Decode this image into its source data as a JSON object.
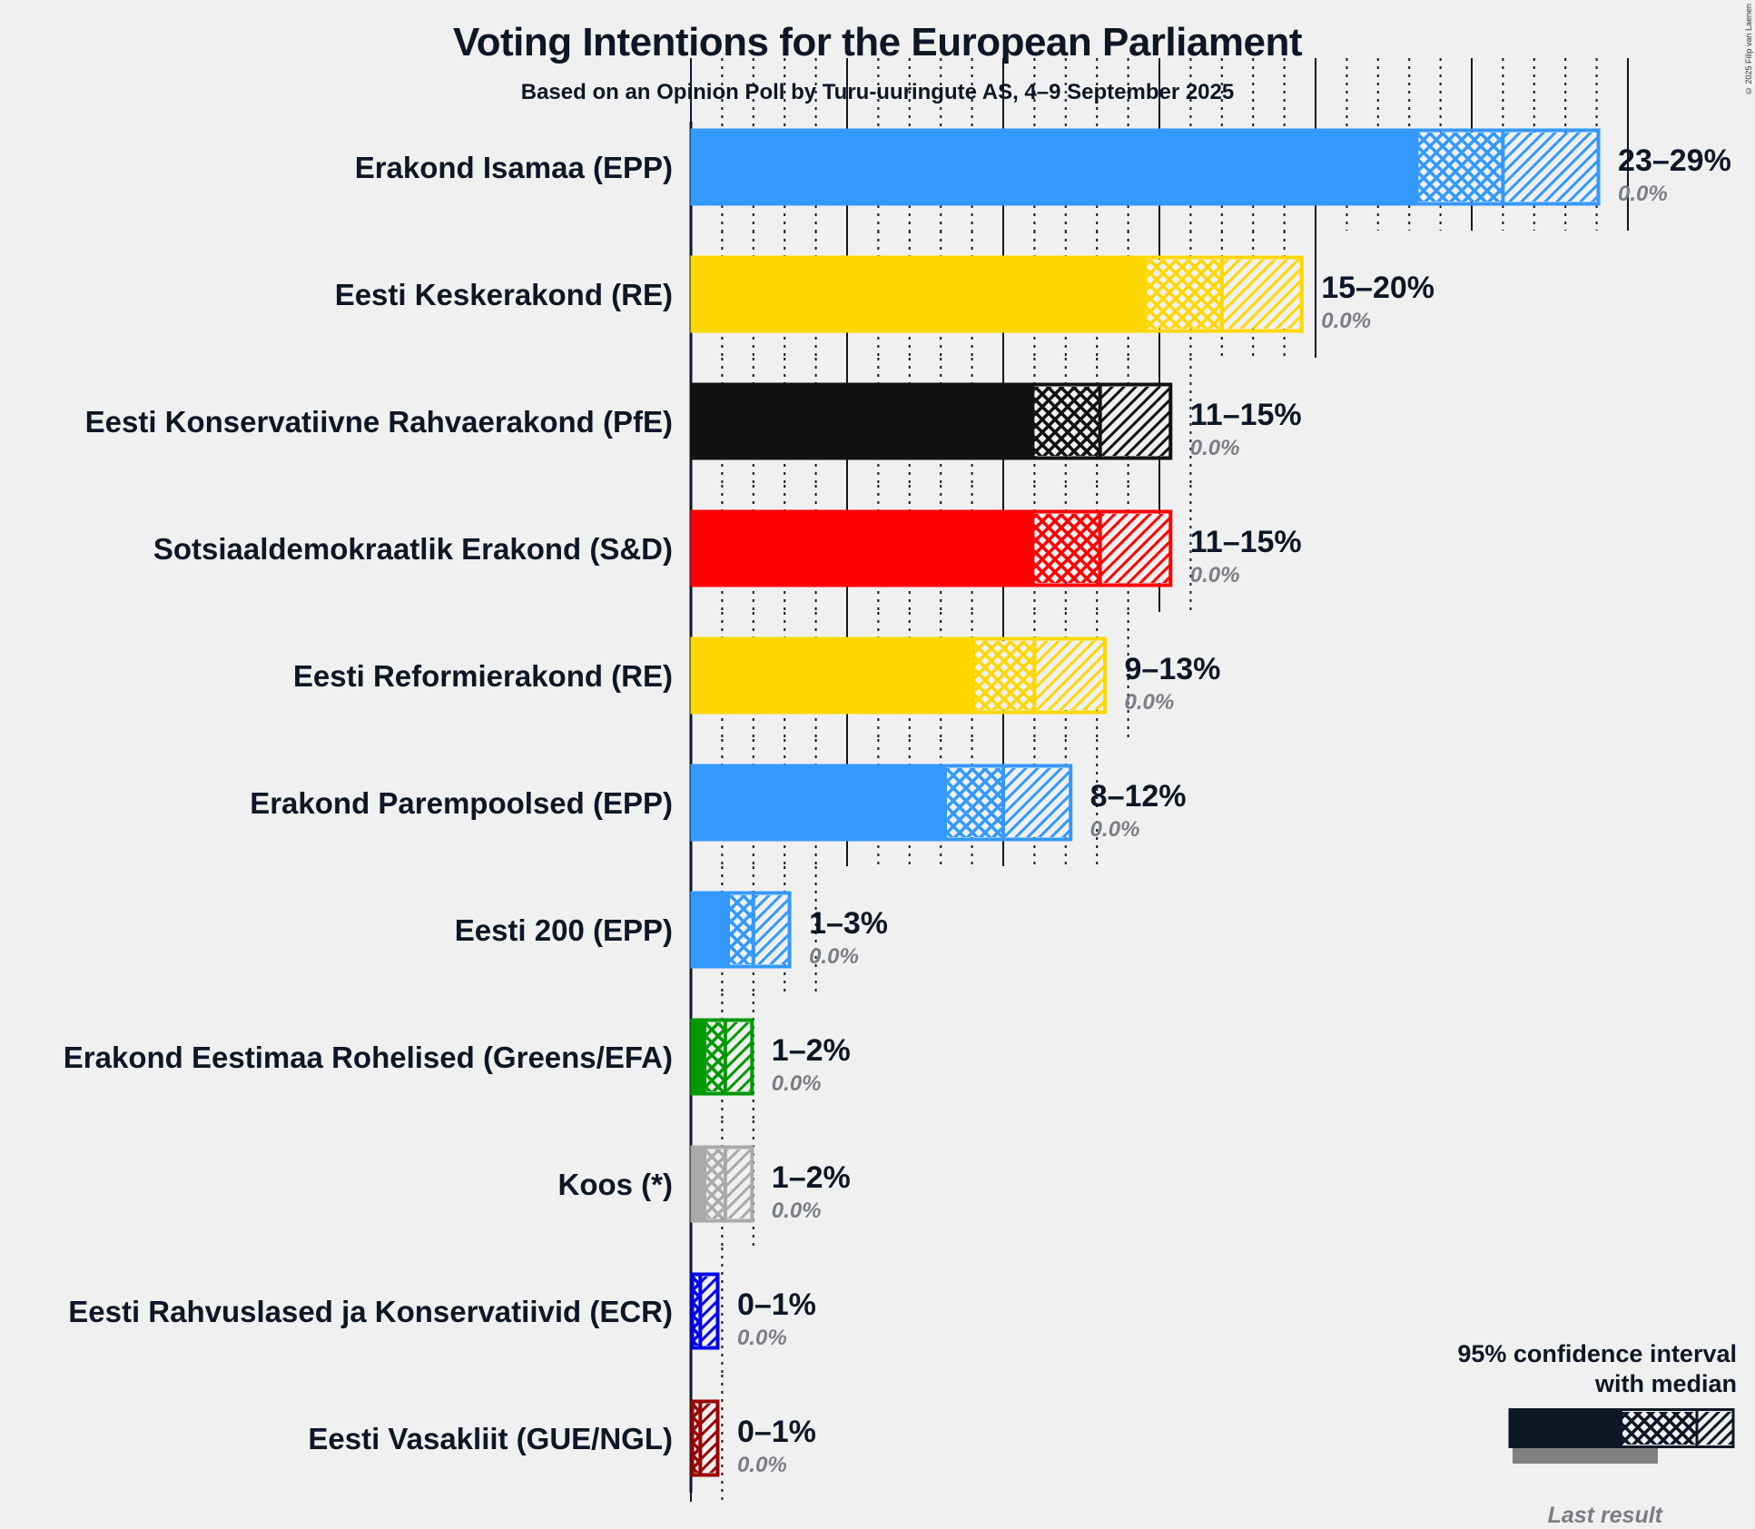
{
  "title": "Voting Intentions for the European Parliament",
  "subtitle": "Based on an Opinion Poll by Turu-uuringute AS, 4–9 September 2025",
  "copyright": "© 2025 Filip van Laenen",
  "legend": {
    "title_line1": "95% confidence interval",
    "title_line2": "with median",
    "last_result": "Last result"
  },
  "chart_data": {
    "type": "bar",
    "orientation": "horizontal",
    "title": "Voting Intentions for the European Parliament",
    "subtitle": "Based on an Opinion Poll by Turu-uuringute AS, 4–9 September 2025",
    "xlabel": "",
    "ylabel": "",
    "xlim": [
      0,
      30
    ],
    "x_major_tick_step": 5,
    "x_minor_tick_step": 1,
    "grid": true,
    "legend_position": "bottom-right",
    "series_fields": [
      "ci_low",
      "median",
      "ci_high",
      "last_result"
    ],
    "categories": [
      "Erakond Isamaa (EPP)",
      "Eesti Keskerakond (RE)",
      "Eesti Konservatiivne Rahvaerakond (PfE)",
      "Sotsiaaldemokraatlik Erakond (S&D)",
      "Eesti Reformierakond (RE)",
      "Erakond Parempoolsed (EPP)",
      "Eesti 200 (EPP)",
      "Erakond Eestimaa Rohelised (Greens/EFA)",
      "Koos (*)",
      "Eesti Rahvuslased ja Konservatiivid (ECR)",
      "Eesti Vasakliit (GUE/NGL)"
    ],
    "parties": [
      {
        "name": "Erakond Isamaa (EPP)",
        "color": "#3399ff",
        "ci_low": 23.3,
        "median": 26.0,
        "ci_high": 29.1,
        "range_label": "23–29%",
        "last_result": 0.0,
        "last_label": "0.0%"
      },
      {
        "name": "Eesti Keskerakond (RE)",
        "color": "#ffd700",
        "ci_low": 14.6,
        "median": 17.0,
        "ci_high": 19.6,
        "range_label": "15–20%",
        "last_result": 0.0,
        "last_label": "0.0%"
      },
      {
        "name": "Eesti Konservatiivne Rahvaerakond (PfE)",
        "color": "#111111",
        "ci_low": 11.0,
        "median": 13.1,
        "ci_high": 15.4,
        "range_label": "11–15%",
        "last_result": 0.0,
        "last_label": "0.0%"
      },
      {
        "name": "Sotsiaaldemokraatlik Erakond (S&D)",
        "color": "#ff0000",
        "ci_low": 11.0,
        "median": 13.1,
        "ci_high": 15.4,
        "range_label": "11–15%",
        "last_result": 0.0,
        "last_label": "0.0%"
      },
      {
        "name": "Eesti Reformierakond (RE)",
        "color": "#ffd700",
        "ci_low": 9.1,
        "median": 11.0,
        "ci_high": 13.3,
        "range_label": "9–13%",
        "last_result": 0.0,
        "last_label": "0.0%"
      },
      {
        "name": "Erakond Parempoolsed (EPP)",
        "color": "#3399ff",
        "ci_low": 8.2,
        "median": 10.0,
        "ci_high": 12.2,
        "range_label": "8–12%",
        "last_result": 0.0,
        "last_label": "0.0%"
      },
      {
        "name": "Eesti 200 (EPP)",
        "color": "#3399ff",
        "ci_low": 1.25,
        "median": 2.0,
        "ci_high": 3.2,
        "range_label": "1–3%",
        "last_result": 0.0,
        "last_label": "0.0%"
      },
      {
        "name": "Erakond Eestimaa Rohelised (Greens/EFA)",
        "color": "#009900",
        "ci_low": 0.5,
        "median": 1.1,
        "ci_high": 2.0,
        "range_label": "1–2%",
        "last_result": 0.0,
        "last_label": "0.0%"
      },
      {
        "name": "Koos (*)",
        "color": "#aaaaaa",
        "ci_low": 0.5,
        "median": 1.1,
        "ci_high": 2.0,
        "range_label": "1–2%",
        "last_result": 0.0,
        "last_label": "0.0%"
      },
      {
        "name": "Eesti Rahvuslased ja Konservatiivid (ECR)",
        "color": "#0000ee",
        "ci_low": 0.0,
        "median": 0.3,
        "ci_high": 0.9,
        "range_label": "0–1%",
        "last_result": 0.0,
        "last_label": "0.0%"
      },
      {
        "name": "Eesti Vasakliit (GUE/NGL)",
        "color": "#990000",
        "ci_low": 0.0,
        "median": 0.3,
        "ci_high": 0.9,
        "range_label": "0–1%",
        "last_result": 0.0,
        "last_label": "0.0%"
      }
    ]
  }
}
